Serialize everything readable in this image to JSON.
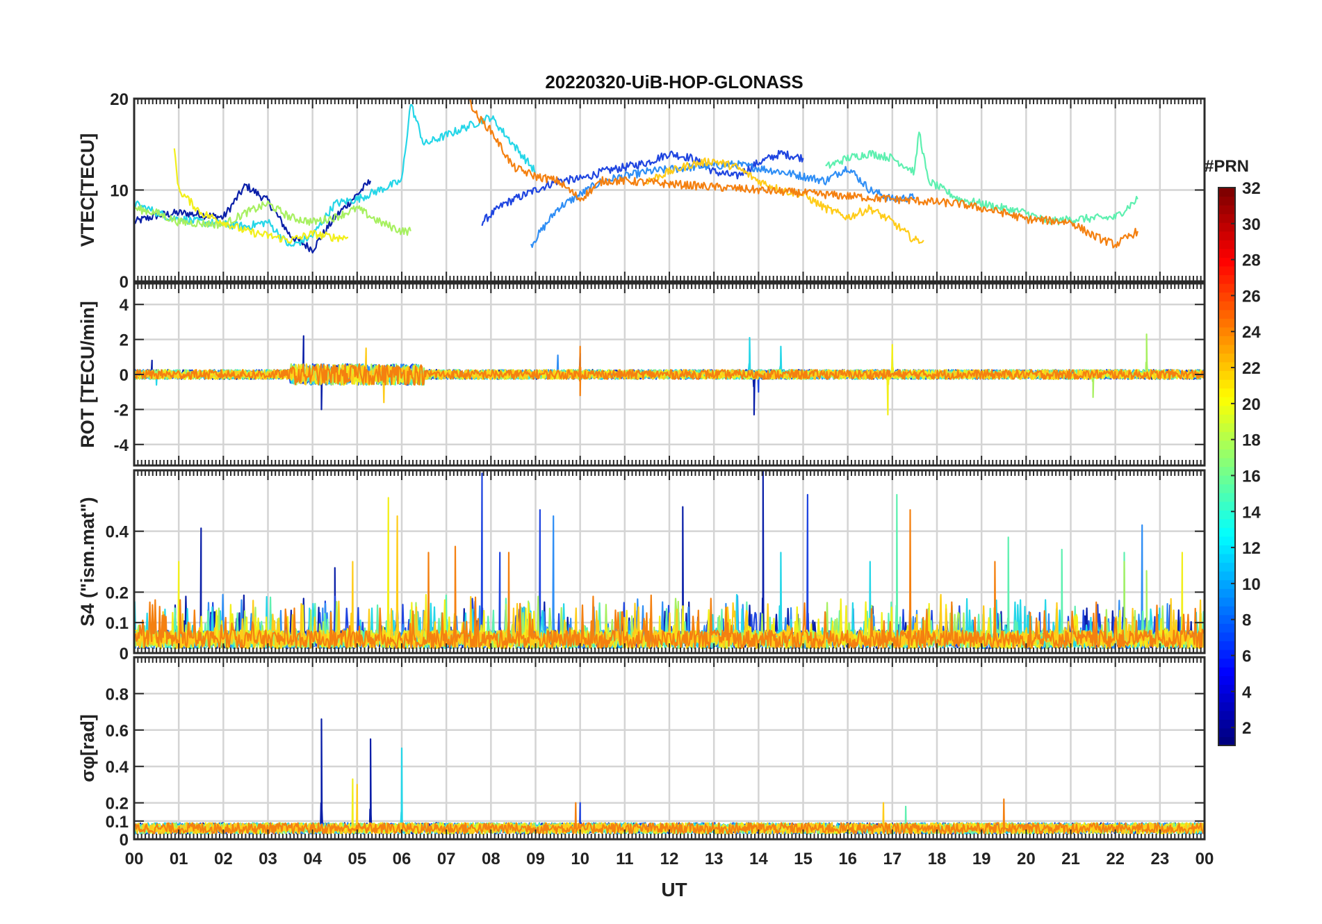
{
  "chart_data": {
    "type": "line",
    "title": "20220320-UiB-HOP-GLONASS",
    "xlabel": "UT",
    "x_range": [
      0,
      24
    ],
    "x_tick_labels": [
      "00",
      "01",
      "02",
      "03",
      "04",
      "05",
      "06",
      "07",
      "08",
      "09",
      "10",
      "11",
      "12",
      "13",
      "14",
      "15",
      "16",
      "17",
      "18",
      "19",
      "20",
      "21",
      "22",
      "23",
      "00"
    ],
    "panels": [
      {
        "id": "vtec",
        "ylabel": "VTEC[TECU]",
        "ylim": [
          0,
          20
        ],
        "ticks": [
          0,
          10,
          20
        ],
        "tick_labels": [
          "0",
          "10",
          "20"
        ],
        "grid": true
      },
      {
        "id": "rot",
        "ylabel": "ROT [TECU/min]",
        "ylim": [
          -5.2,
          5.2
        ],
        "ticks": [
          -4,
          -2,
          0,
          2,
          4
        ],
        "tick_labels": [
          "-4",
          "-2",
          "0",
          "2",
          "4"
        ],
        "grid": true
      },
      {
        "id": "s4",
        "ylabel": "S4 (\"ism.mat\")",
        "ylim": [
          0,
          0.6
        ],
        "ticks": [
          0,
          0.1,
          0.2,
          0.4
        ],
        "tick_labels": [
          "0",
          "0.1",
          "0.2",
          "0.4"
        ],
        "grid": true
      },
      {
        "id": "sigma",
        "ylabel": "σφ[rad]",
        "ylim": [
          0,
          1.0
        ],
        "ticks": [
          0,
          0.1,
          0.2,
          0.4,
          0.6,
          0.8
        ],
        "tick_labels": [
          "0",
          "0.1",
          "0.2",
          "0.4",
          "0.6",
          "0.8"
        ],
        "grid": true
      }
    ],
    "colorbar": {
      "label": "#PRN",
      "range": [
        1,
        32
      ],
      "colormap": "jet",
      "ticks": [
        2,
        4,
        6,
        8,
        10,
        12,
        14,
        16,
        18,
        20,
        22,
        24,
        26,
        28,
        30,
        32
      ],
      "tick_labels": [
        "2",
        "4",
        "6",
        "8",
        "10",
        "12",
        "14",
        "16",
        "18",
        "20",
        "22",
        "24",
        "26",
        "28",
        "30",
        "32"
      ]
    },
    "series": [
      {
        "name": "PRN 2",
        "color": "#0a1fa8",
        "vtec": [
          [
            0,
            6.5
          ],
          [
            0.5,
            7.2
          ],
          [
            1,
            7.5
          ],
          [
            1.5,
            7.3
          ],
          [
            2,
            7.0
          ],
          [
            2.5,
            10.5
          ],
          [
            3,
            8.8
          ],
          [
            3.5,
            5.0
          ],
          [
            4,
            3.5
          ],
          [
            4.5,
            7.0
          ],
          [
            5,
            9.5
          ],
          [
            5.3,
            11
          ]
        ],
        "rot_hot": [
          [
            0.4,
            0.8
          ],
          [
            3.8,
            2.2
          ],
          [
            4.2,
            -2.0
          ],
          [
            13.9,
            -2.3
          ]
        ],
        "s4_peaks": [
          [
            1.5,
            0.41
          ],
          [
            4.5,
            0.28
          ],
          [
            12.3,
            0.48
          ],
          [
            14.1,
            0.6
          ]
        ],
        "sigma_peaks": [
          [
            4.2,
            0.66
          ],
          [
            5.3,
            0.55
          ]
        ]
      },
      {
        "name": "PRN 5",
        "color": "#1f45e0",
        "vtec": [
          [
            7.8,
            6.5
          ],
          [
            8.3,
            8.5
          ],
          [
            9,
            10
          ],
          [
            9.5,
            11
          ],
          [
            10,
            11.2
          ],
          [
            10.5,
            12
          ],
          [
            11,
            12.5
          ],
          [
            11.5,
            13
          ],
          [
            12,
            14
          ],
          [
            12.5,
            13.5
          ],
          [
            13,
            12
          ],
          [
            13.5,
            11.5
          ],
          [
            14,
            13
          ],
          [
            14.5,
            14
          ],
          [
            15,
            13.5
          ]
        ],
        "rot_hot": [
          [
            10,
            1.2
          ],
          [
            14,
            -1.0
          ]
        ],
        "s4_peaks": [
          [
            7.8,
            0.59
          ],
          [
            8.2,
            0.33
          ],
          [
            9.1,
            0.47
          ],
          [
            15.1,
            0.52
          ]
        ],
        "sigma_peaks": [
          [
            10,
            0.2
          ]
        ]
      },
      {
        "name": "PRN 8",
        "color": "#2f8ef5",
        "vtec": [
          [
            8.9,
            4.0
          ],
          [
            9.5,
            8.0
          ],
          [
            10,
            9.5
          ],
          [
            10.5,
            11
          ],
          [
            11,
            11.5
          ],
          [
            11.5,
            12
          ],
          [
            12.5,
            12.5
          ],
          [
            13.5,
            12.8
          ],
          [
            14.5,
            12
          ],
          [
            15.5,
            11
          ],
          [
            16,
            12.5
          ],
          [
            16.5,
            10
          ],
          [
            17,
            9
          ],
          [
            17.5,
            9.2
          ]
        ],
        "rot_hot": [
          [
            9.5,
            1.1
          ]
        ],
        "s4_peaks": [
          [
            9.4,
            0.45
          ],
          [
            22.6,
            0.42
          ]
        ],
        "sigma_peaks": []
      },
      {
        "name": "PRN 12",
        "color": "#25d6e8",
        "vtec": [
          [
            0,
            8.5
          ],
          [
            0.8,
            7.0
          ],
          [
            1.5,
            6.5
          ],
          [
            2.5,
            6.0
          ],
          [
            3,
            6.5
          ],
          [
            3.5,
            3.8
          ],
          [
            4,
            5
          ],
          [
            4.5,
            8.5
          ],
          [
            5,
            9
          ],
          [
            5.5,
            10
          ],
          [
            6,
            11
          ],
          [
            6.2,
            19.5
          ],
          [
            6.5,
            15
          ],
          [
            7,
            16
          ],
          [
            7.5,
            17
          ],
          [
            8,
            18
          ],
          [
            8.5,
            15
          ],
          [
            9,
            12
          ]
        ],
        "rot_hot": [
          [
            0.5,
            -0.6
          ],
          [
            13.8,
            2.1
          ],
          [
            14.5,
            1.6
          ]
        ],
        "s4_peaks": [
          [
            14.5,
            0.33
          ],
          [
            16.5,
            0.3
          ]
        ],
        "sigma_peaks": [
          [
            6.0,
            0.5
          ]
        ]
      },
      {
        "name": "PRN 15",
        "color": "#5ef0b0",
        "vtec": [
          [
            15.5,
            12.5
          ],
          [
            16,
            13.5
          ],
          [
            16.5,
            14
          ],
          [
            17,
            13.5
          ],
          [
            17.5,
            12
          ],
          [
            17.6,
            16.5
          ],
          [
            17.8,
            11
          ],
          [
            18.5,
            9.0
          ],
          [
            19,
            8.5
          ],
          [
            20,
            7.5
          ],
          [
            20.5,
            6.5
          ],
          [
            21,
            6.8
          ],
          [
            22,
            7.0
          ],
          [
            22.5,
            9.0
          ]
        ],
        "rot_hot": [
          [
            17,
            1.0
          ]
        ],
        "s4_peaks": [
          [
            17.1,
            0.52
          ],
          [
            19.6,
            0.38
          ],
          [
            20.8,
            0.34
          ],
          [
            22.2,
            0.33
          ]
        ],
        "sigma_peaks": [
          [
            17.3,
            0.18
          ]
        ]
      },
      {
        "name": "PRN 17",
        "color": "#a7f060",
        "vtec": [
          [
            0,
            8
          ],
          [
            0.5,
            7.5
          ],
          [
            1,
            6.5
          ],
          [
            2,
            6.2
          ],
          [
            2.5,
            7.5
          ],
          [
            3,
            8.5
          ],
          [
            3.5,
            7
          ],
          [
            4,
            6.5
          ],
          [
            4.5,
            7
          ],
          [
            5,
            8
          ],
          [
            5.5,
            6.5
          ],
          [
            6,
            5.5
          ],
          [
            6.2,
            5.5
          ]
        ],
        "rot_hot": [
          [
            22.7,
            2.3
          ],
          [
            21.5,
            -1.3
          ]
        ],
        "s4_peaks": [
          [
            22.7,
            0.27
          ],
          [
            22.2,
            0.3
          ]
        ],
        "sigma_peaks": []
      },
      {
        "name": "PRN 20",
        "color": "#f2ef1a",
        "vtec": [
          [
            0.9,
            14.5
          ],
          [
            1,
            10
          ],
          [
            1.5,
            7.5
          ],
          [
            2,
            6.5
          ],
          [
            2.5,
            5.5
          ],
          [
            3,
            5.0
          ],
          [
            3.5,
            4.5
          ],
          [
            4,
            5.2
          ],
          [
            4.5,
            4.8
          ],
          [
            4.8,
            4.8
          ]
        ],
        "rot_hot": [
          [
            16.9,
            -2.3
          ],
          [
            17,
            1.7
          ]
        ],
        "s4_peaks": [
          [
            5.7,
            0.51
          ],
          [
            1.0,
            0.3
          ],
          [
            23.5,
            0.33
          ]
        ],
        "sigma_peaks": [
          [
            4.9,
            0.33
          ]
        ]
      },
      {
        "name": "PRN 21",
        "color": "#ffcc1a",
        "vtec": [
          [
            11.5,
            11.0
          ],
          [
            12,
            12.0
          ],
          [
            12.5,
            12.8
          ],
          [
            13,
            13.2
          ],
          [
            13.5,
            12.5
          ],
          [
            14,
            11
          ],
          [
            14.5,
            10
          ],
          [
            15,
            9.5
          ],
          [
            15.5,
            8.0
          ],
          [
            16,
            7.0
          ],
          [
            16.5,
            8.0
          ],
          [
            17,
            6.5
          ],
          [
            17.5,
            4.5
          ],
          [
            17.7,
            4.5
          ]
        ],
        "rot_hot": [
          [
            5.2,
            1.5
          ],
          [
            5.6,
            -1.6
          ]
        ],
        "s4_peaks": [
          [
            5.9,
            0.45
          ],
          [
            4.9,
            0.3
          ]
        ],
        "sigma_peaks": [
          [
            5.0,
            0.3
          ],
          [
            16.8,
            0.2
          ]
        ]
      },
      {
        "name": "PRN 23",
        "color": "#f48010",
        "vtec": [
          [
            7.5,
            20
          ],
          [
            7.7,
            18
          ],
          [
            8,
            16.5
          ],
          [
            8.5,
            12.5
          ],
          [
            9,
            11.5
          ],
          [
            9.5,
            11
          ],
          [
            10,
            9.0
          ],
          [
            10.5,
            11
          ],
          [
            11,
            11
          ],
          [
            18.5,
            8.5
          ],
          [
            19,
            8.0
          ],
          [
            19.5,
            7.5
          ],
          [
            20,
            6.8
          ],
          [
            21,
            6.5
          ],
          [
            21.5,
            5.0
          ],
          [
            22,
            4.0
          ],
          [
            22.5,
            5.5
          ]
        ],
        "rot_hot": [
          [
            10,
            1.6
          ],
          [
            10,
            -1.2
          ]
        ],
        "s4_peaks": [
          [
            7.2,
            0.35
          ],
          [
            8.4,
            0.33
          ],
          [
            17.4,
            0.47
          ],
          [
            19.3,
            0.3
          ],
          [
            6.6,
            0.33
          ]
        ],
        "sigma_peaks": [
          [
            9.9,
            0.2
          ],
          [
            19.5,
            0.22
          ]
        ]
      }
    ]
  }
}
